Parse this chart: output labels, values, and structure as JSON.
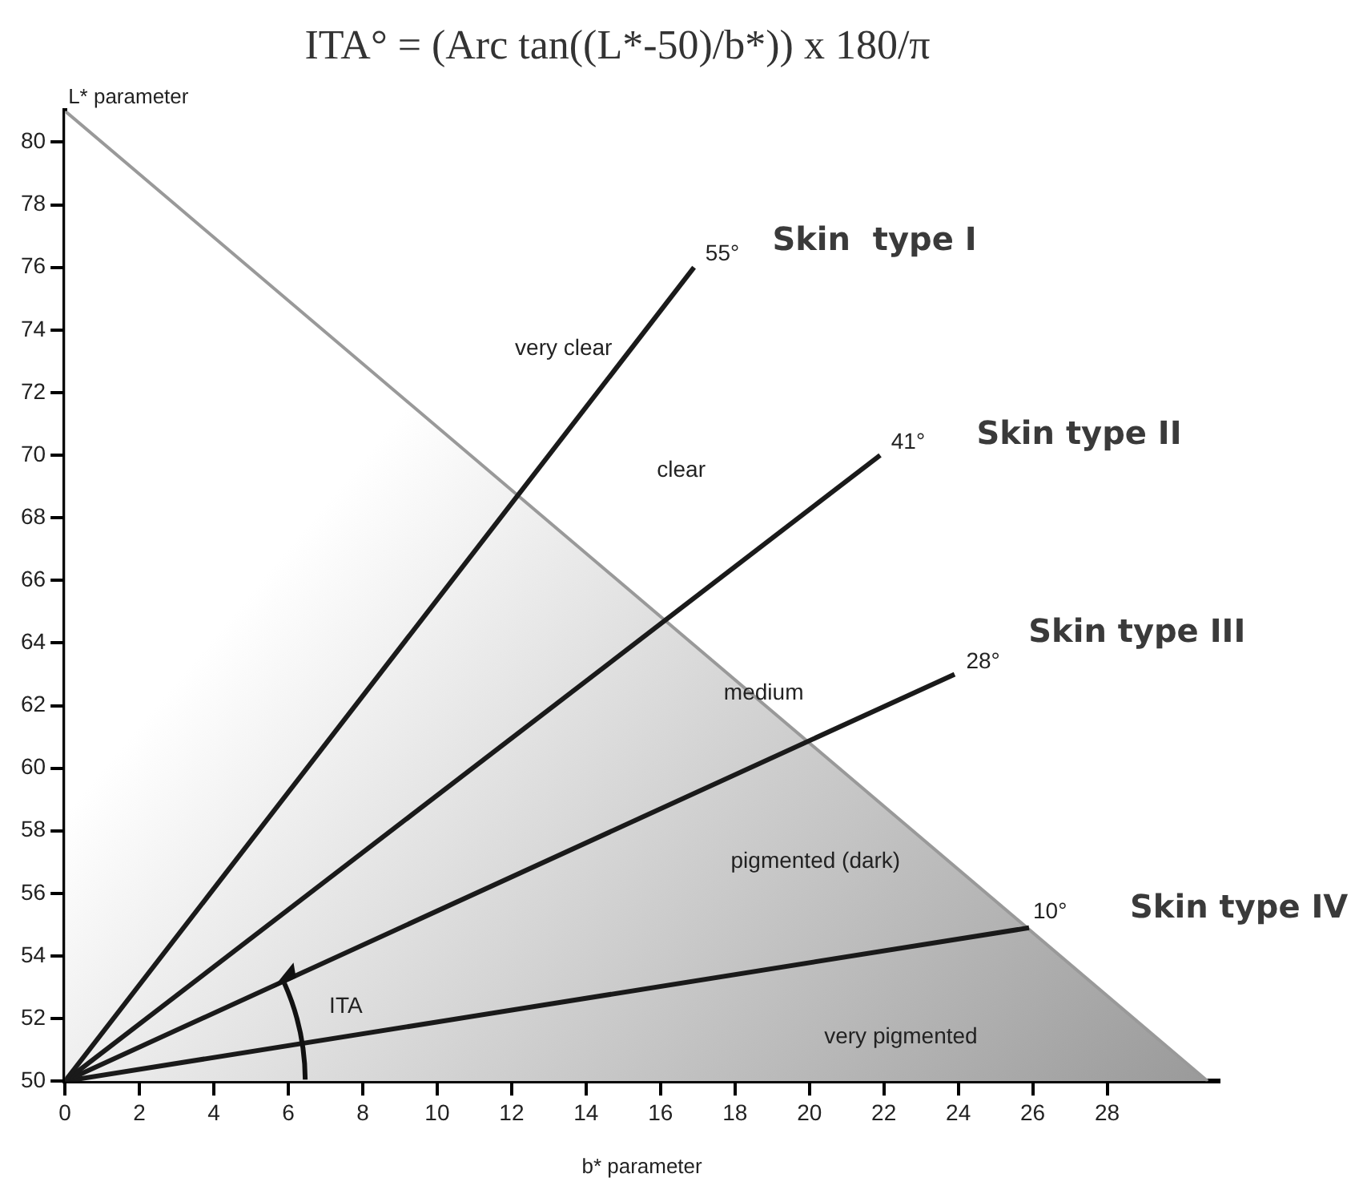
{
  "chart_data": {
    "type": "line",
    "title": "ITA° = (Arc tan((L*-50)/b*)) x 180/π",
    "xlabel": "b* parameter",
    "ylabel": "L* parameter",
    "xlim": [
      0,
      31
    ],
    "xticks": [
      0,
      2,
      4,
      6,
      8,
      10,
      12,
      14,
      16,
      18,
      20,
      22,
      24,
      26,
      28
    ],
    "ylim": [
      50,
      81
    ],
    "yticks": [
      50,
      52,
      54,
      56,
      58,
      60,
      62,
      64,
      66,
      68,
      70,
      72,
      74,
      76,
      78,
      80
    ],
    "marker": "none",
    "series": [
      {
        "type": "area",
        "color": "#999999",
        "x": [
          0,
          30.7
        ],
        "values": [
          81,
          50
        ]
      },
      {
        "type": "line",
        "color": "#1a1a1a",
        "x": [
          0,
          16.9
        ],
        "values": [
          50,
          76
        ]
      },
      {
        "type": "line",
        "color": "#1a1a1a",
        "x": [
          0,
          21.9
        ],
        "values": [
          50,
          70
        ]
      },
      {
        "type": "line",
        "color": "#1a1a1a",
        "x": [
          0,
          23.9
        ],
        "values": [
          50,
          63
        ]
      },
      {
        "type": "line",
        "color": "#1a1a1a",
        "x": [
          0,
          25.9
        ],
        "values": [
          50,
          54.9
        ]
      }
    ],
    "annotations": [
      "55°",
      "Skin  type I",
      "41°",
      "Skin type II",
      "28°",
      "Skin type III",
      "10°",
      "Skin type IV",
      "very clear",
      "clear",
      "medium",
      "pigmented (dark)",
      "very pigmented",
      "ITA"
    ]
  }
}
